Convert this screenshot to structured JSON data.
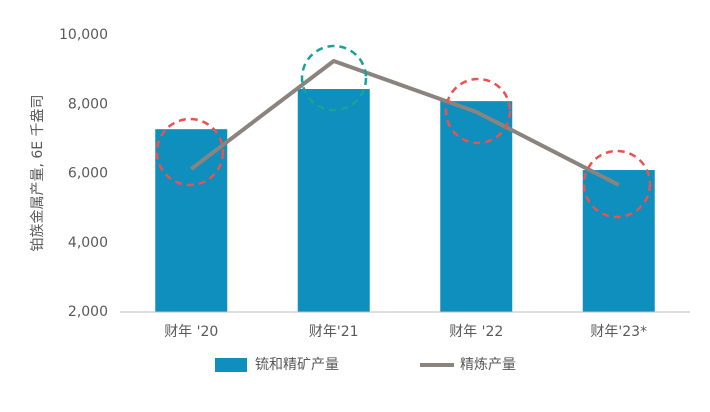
{
  "chart_data": {
    "type": "bar",
    "y_label": "铂族金属产量, 6E 千盎司",
    "categories": [
      "财年 '20",
      "财年'21",
      "财年 '22",
      "财年'23*"
    ],
    "series": [
      {
        "name": "锍和精矿产量",
        "type": "bar",
        "color": "#0e8fbd",
        "values": [
          7280,
          8440,
          8090,
          6100
        ]
      },
      {
        "name": "精炼产量",
        "type": "line",
        "color": "#8a837e",
        "values": [
          6130,
          9250,
          7780,
          5670
        ]
      }
    ],
    "ylim": [
      2000,
      10000
    ],
    "yticks": [
      {
        "value": 2000,
        "label": "2,000"
      },
      {
        "value": 4000,
        "label": "4,000"
      },
      {
        "value": 6000,
        "label": "6,000"
      },
      {
        "value": 8000,
        "label": "8,000"
      },
      {
        "value": 10000,
        "label": "10,000"
      }
    ],
    "grid": false
  }
}
